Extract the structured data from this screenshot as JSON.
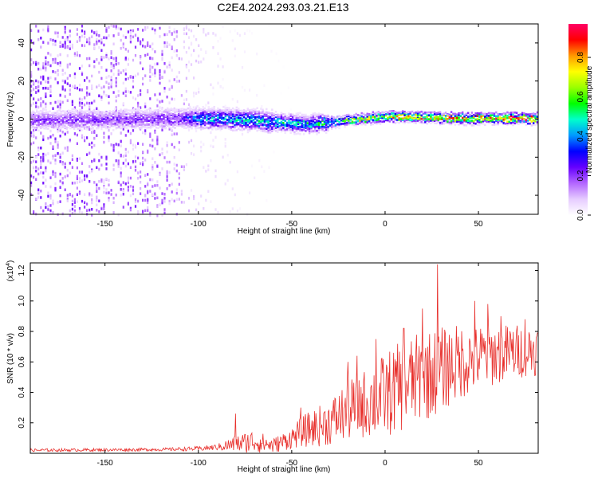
{
  "title": "C2E4.2024.293.03.21.E13",
  "chart_data": [
    {
      "type": "heatmap",
      "xlabel": "Height of straight line (km)",
      "ylabel": "Frequency (Hz)",
      "xlim": [
        -190,
        82
      ],
      "ylim": [
        -50,
        50
      ],
      "xticks": [
        -150,
        -100,
        -50,
        0,
        50
      ],
      "yticks": [
        -40,
        -20,
        0,
        20,
        40
      ],
      "colorbar": {
        "label": "Normalized spectral amplitude",
        "range": [
          0.0,
          0.97
        ],
        "ticks": [
          "0.0",
          "0.2",
          "0.4",
          "0.6",
          "0.8"
        ],
        "tick_values": [
          0.0,
          0.2,
          0.4,
          0.6,
          0.8
        ],
        "colormap": [
          "#ffffff",
          "#e6ccff",
          "#b366ff",
          "#6600ff",
          "#0000ff",
          "#0099ff",
          "#00ffcc",
          "#00ff00",
          "#99ff00",
          "#ffff00",
          "#ff9900",
          "#ff0000",
          "#ff0066"
        ]
      },
      "band_center_freq_hz": [
        [
          -190,
          0
        ],
        [
          -100,
          1
        ],
        [
          -70,
          0
        ],
        [
          -60,
          -1
        ],
        [
          -40,
          -2
        ],
        [
          -20,
          0
        ],
        [
          0,
          2
        ],
        [
          40,
          1
        ],
        [
          82,
          1
        ]
      ],
      "band_peak_amplitude": [
        [
          -190,
          0.22
        ],
        [
          -110,
          0.25
        ],
        [
          -100,
          0.45
        ],
        [
          -60,
          0.5
        ],
        [
          -30,
          0.55
        ],
        [
          -10,
          0.75
        ],
        [
          20,
          0.85
        ],
        [
          60,
          0.95
        ],
        [
          82,
          0.95
        ]
      ],
      "noise_amplitude": [
        [
          -190,
          0.18
        ],
        [
          -120,
          0.15
        ],
        [
          -100,
          0.06
        ],
        [
          -80,
          0.03
        ],
        [
          -60,
          0.01
        ],
        [
          -40,
          0.0
        ],
        [
          82,
          0.0
        ]
      ]
    },
    {
      "type": "line",
      "xlabel": "Height of straight line (km)",
      "ylabel": "SNR (10 * v/v)",
      "y_multiplier": "(x10",
      "y_multiplier_exp": "4",
      "y_multiplier_close": ")",
      "xlim": [
        -190,
        82
      ],
      "ylim": [
        0,
        1.25
      ],
      "xticks": [
        -150,
        -100,
        -50,
        0,
        50
      ],
      "yticks": [
        0.2,
        0.4,
        0.6,
        0.8,
        1.0,
        1.2
      ],
      "color": "#e8302c",
      "envelope": {
        "x": [
          -190,
          -120,
          -100,
          -90,
          -85,
          -80,
          -70,
          -60,
          -50,
          -45,
          -40,
          -30,
          -20,
          -10,
          0,
          10,
          20,
          30,
          40,
          50,
          60,
          70,
          82
        ],
        "mean": [
          0.02,
          0.025,
          0.03,
          0.04,
          0.05,
          0.06,
          0.08,
          0.05,
          0.1,
          0.14,
          0.16,
          0.2,
          0.28,
          0.33,
          0.38,
          0.45,
          0.5,
          0.55,
          0.6,
          0.63,
          0.65,
          0.67,
          0.68
        ],
        "spread": [
          0.01,
          0.01,
          0.015,
          0.02,
          0.04,
          0.06,
          0.08,
          0.05,
          0.07,
          0.1,
          0.12,
          0.15,
          0.2,
          0.23,
          0.28,
          0.3,
          0.3,
          0.28,
          0.25,
          0.22,
          0.2,
          0.18,
          0.17
        ]
      },
      "peaks": [
        [
          -80,
          0.26
        ],
        [
          -45,
          0.3
        ],
        [
          -20,
          0.6
        ],
        [
          -15,
          0.64
        ],
        [
          -5,
          0.75
        ],
        [
          10,
          0.82
        ],
        [
          20,
          0.95
        ],
        [
          28,
          1.24
        ],
        [
          48,
          1.0
        ],
        [
          55,
          0.98
        ],
        [
          62,
          0.9
        ],
        [
          75,
          0.88
        ]
      ]
    }
  ]
}
